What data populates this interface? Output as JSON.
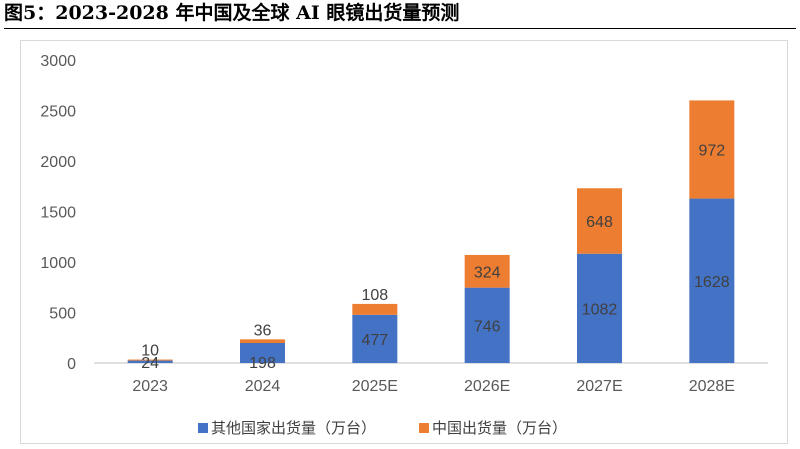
{
  "figure": {
    "title": "图5：2023-2028 年中国及全球 AI 眼镜出货量预测"
  },
  "chart_data": {
    "type": "bar",
    "stacked": true,
    "categories": [
      "2023",
      "2024",
      "2025E",
      "2026E",
      "2027E",
      "2028E"
    ],
    "series": [
      {
        "name": "其他国家出货量（万台）",
        "color": "#4472C4",
        "values": [
          24,
          198,
          477,
          746,
          1082,
          1628
        ]
      },
      {
        "name": "中国出货量（万台）",
        "color": "#ED7D31",
        "values": [
          10,
          36,
          108,
          324,
          648,
          972
        ]
      }
    ],
    "ylim": [
      0,
      3000
    ],
    "yticks": [
      0,
      500,
      1000,
      1500,
      2000,
      2500,
      3000
    ],
    "ytick_labels": [
      "0",
      "500",
      "1000",
      "1500",
      "2000",
      "2500",
      "3000"
    ],
    "grid": false,
    "legend_position": "bottom"
  }
}
